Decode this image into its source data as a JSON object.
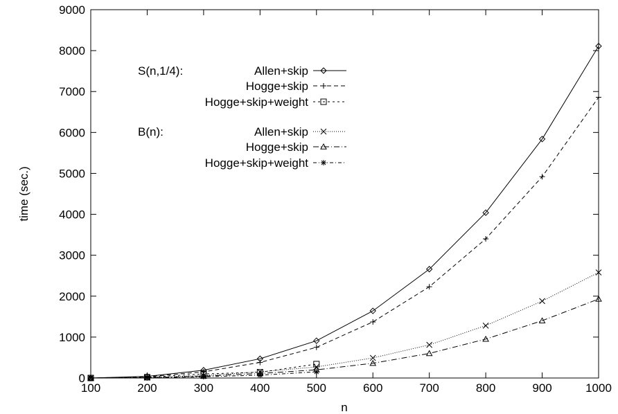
{
  "chart_data": {
    "type": "line",
    "title": "",
    "xlabel": "n",
    "ylabel": "time (sec.)",
    "xlim": [
      100,
      1000
    ],
    "ylim": [
      0,
      9000
    ],
    "x_ticks": [
      "100",
      "200",
      "300",
      "400",
      "500",
      "600",
      "700",
      "800",
      "900",
      "1000"
    ],
    "y_ticks": [
      "0",
      "1000",
      "2000",
      "3000",
      "4000",
      "5000",
      "6000",
      "7000",
      "8000",
      "9000"
    ],
    "grid": false,
    "legend_placement": "top-left",
    "legend_groups": [
      {
        "label": "S(n,1/4):",
        "series": [
          0,
          1,
          2
        ]
      },
      {
        "label": "B(n):",
        "series": [
          3,
          4,
          5
        ]
      }
    ],
    "series": [
      {
        "name": "Allen+skip",
        "group": "S(n,1/4)",
        "marker": "diamond",
        "dash": "solid",
        "x": [
          100,
          200,
          300,
          400,
          500,
          600,
          700,
          800,
          900,
          1000
        ],
        "values": [
          0,
          40,
          190,
          470,
          910,
          1640,
          2660,
          4040,
          5840,
          8110
        ]
      },
      {
        "name": "Hogge+skip",
        "group": "S(n,1/4)",
        "marker": "plus",
        "dash": "dashed",
        "x": [
          100,
          200,
          300,
          400,
          500,
          600,
          700,
          800,
          900,
          1000
        ],
        "values": [
          0,
          30,
          150,
          380,
          750,
          1370,
          2230,
          3400,
          4920,
          6860
        ]
      },
      {
        "name": "Hogge+skip+weight",
        "group": "S(n,1/4)",
        "marker": "square",
        "dash": "dotted",
        "x": [
          100,
          200,
          300,
          400,
          500
        ],
        "values": [
          0,
          20,
          100,
          140,
          340
        ]
      },
      {
        "name": "Allen+skip",
        "group": "B(n)",
        "marker": "cross",
        "dash": "fine-dotted",
        "x": [
          100,
          200,
          300,
          400,
          500,
          600,
          700,
          800,
          900,
          1000
        ],
        "values": [
          0,
          10,
          60,
          150,
          270,
          490,
          810,
          1280,
          1880,
          2580
        ]
      },
      {
        "name": "Hogge+skip",
        "group": "B(n)",
        "marker": "triangle",
        "dash": "dash-dot",
        "x": [
          100,
          200,
          300,
          400,
          500,
          600,
          700,
          800,
          900,
          1000
        ],
        "values": [
          0,
          8,
          45,
          110,
          200,
          360,
          600,
          950,
          1400,
          1930
        ]
      },
      {
        "name": "Hogge+skip+weight",
        "group": "B(n)",
        "marker": "star",
        "dash": "dash-dot-short",
        "x": [
          100,
          200,
          300,
          400,
          500
        ],
        "values": [
          0,
          5,
          30,
          70,
          150
        ]
      }
    ]
  }
}
